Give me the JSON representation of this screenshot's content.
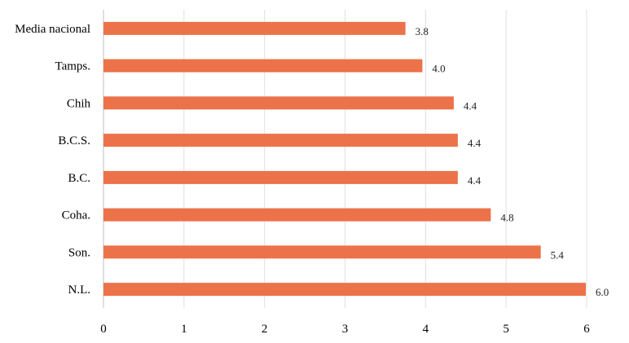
{
  "chart_data": {
    "type": "bar",
    "orientation": "horizontal",
    "categories": [
      "Media nacional",
      "Tamps.",
      "Chih",
      "B.C.S.",
      "B.C.",
      "Coha.",
      "Son.",
      "N.L."
    ],
    "values": [
      3.75,
      3.96,
      4.35,
      4.4,
      4.4,
      4.81,
      5.43,
      5.99
    ],
    "data_labels": [
      "3.8",
      "4.0",
      "4.4",
      "4.4",
      "4.4",
      "4.8",
      "5.4",
      "6.0"
    ],
    "x_ticks": [
      "0",
      "1",
      "2",
      "3",
      "4",
      "5",
      "6"
    ],
    "xlim": [
      0,
      6
    ],
    "title": "",
    "xlabel": "",
    "ylabel": "",
    "grid": "vertical",
    "legend": "none",
    "bar_color": "#ec7249"
  }
}
